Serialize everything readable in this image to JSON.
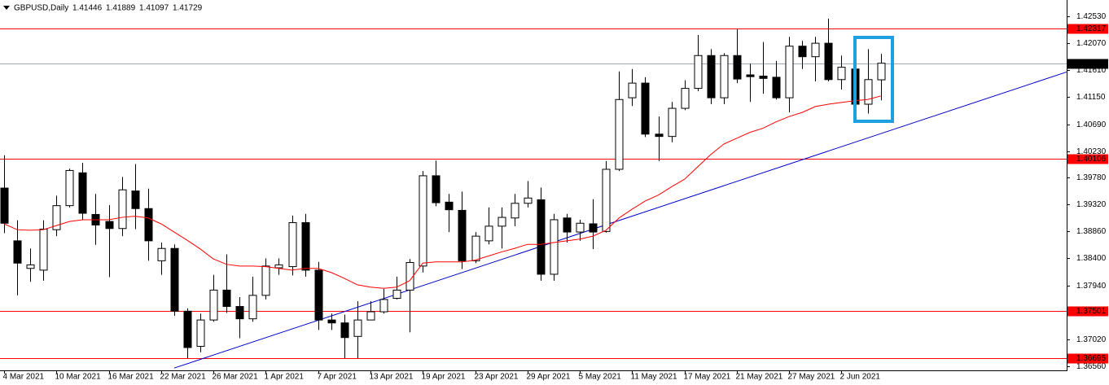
{
  "chart_data": {
    "type": "candlestick",
    "title": "GBPUSD,Daily",
    "categories": [
      "4 Mar 2021",
      null,
      null,
      null,
      "10 Mar 2021",
      null,
      null,
      null,
      "16 Mar 2021",
      null,
      null,
      null,
      "22 Mar 2021",
      null,
      null,
      null,
      "26 Mar 2021",
      null,
      null,
      null,
      "1 Apr 2021",
      null,
      null,
      null,
      "7 Apr 2021",
      null,
      null,
      null,
      "13 Apr 2021",
      null,
      null,
      null,
      "19 Apr 2021",
      null,
      null,
      null,
      "23 Apr 2021",
      null,
      null,
      null,
      "29 Apr 2021",
      null,
      null,
      null,
      "5 May 2021",
      null,
      null,
      null,
      "11 May 2021",
      null,
      null,
      null,
      "17 May 2021",
      null,
      null,
      null,
      "21 May 2021",
      null,
      null,
      null,
      "27 May 2021",
      null,
      null,
      null,
      "2 Jun 2021",
      null,
      null,
      null
    ],
    "open": [
      1.396,
      1.387,
      1.3823,
      1.382,
      1.3889,
      1.393,
      1.3986,
      1.3915,
      1.3903,
      1.3891,
      1.3955,
      1.3925,
      1.3836,
      1.3857,
      1.375,
      1.369,
      1.3735,
      1.3786,
      1.3758,
      1.3737,
      1.3777,
      1.3824,
      1.3826,
      1.3901,
      1.382,
      1.3735,
      1.373,
      1.3707,
      1.3735,
      1.3749,
      1.3772,
      1.3786,
      1.3827,
      1.3981,
      1.3936,
      1.3922,
      1.3836,
      1.387,
      1.3895,
      1.3909,
      1.3934,
      1.394,
      1.3813,
      1.3909,
      1.3885,
      1.3899,
      1.3886,
      1.3992,
      1.4114,
      1.4139,
      1.4052,
      1.4048,
      1.4096,
      1.413,
      1.4186,
      1.4114,
      1.4186,
      1.4153,
      1.4151,
      1.4149,
      1.4114,
      1.4202,
      1.4184,
      1.4207,
      1.4145,
      1.4163,
      1.4103,
      1.41446
    ],
    "high": [
      1.4016,
      1.3905,
      1.3857,
      1.3905,
      1.3947,
      1.3993,
      1.4003,
      1.395,
      1.3931,
      1.3979,
      1.4001,
      1.3959,
      1.3867,
      1.3864,
      1.3755,
      1.3746,
      1.3812,
      1.3847,
      1.3774,
      1.3809,
      1.384,
      1.384,
      1.3913,
      1.3916,
      1.3834,
      1.3746,
      1.3744,
      1.3767,
      1.3767,
      1.3788,
      1.3809,
      1.3839,
      1.3989,
      1.4007,
      1.395,
      1.3954,
      1.3885,
      1.3927,
      1.3927,
      1.395,
      1.3972,
      1.3961,
      1.3916,
      1.3916,
      1.3906,
      1.3941,
      1.4006,
      1.4159,
      1.4163,
      1.4149,
      1.4082,
      1.4107,
      1.4144,
      1.4221,
      1.4197,
      1.419,
      1.4232,
      1.4172,
      1.4209,
      1.4177,
      1.4218,
      1.4211,
      1.4218,
      1.4249,
      1.4186,
      1.4195,
      1.4197,
      1.41889
    ],
    "low": [
      1.3883,
      1.3777,
      1.38,
      1.3802,
      1.3878,
      1.3927,
      1.3906,
      1.3863,
      1.3808,
      1.3878,
      1.389,
      1.3836,
      1.3812,
      1.3742,
      1.367,
      1.368,
      1.3732,
      1.3747,
      1.3704,
      1.3732,
      1.377,
      1.3812,
      1.3811,
      1.3809,
      1.3718,
      1.3718,
      1.367,
      1.367,
      1.3736,
      1.3746,
      1.377,
      1.3714,
      1.3816,
      1.3929,
      1.3885,
      1.3822,
      1.3832,
      1.3864,
      1.3857,
      1.3895,
      1.3927,
      1.3802,
      1.3802,
      1.3867,
      1.387,
      1.3856,
      1.3884,
      1.3989,
      1.41,
      1.4047,
      1.4006,
      1.4038,
      1.4093,
      1.4125,
      1.4103,
      1.4103,
      1.4139,
      1.4107,
      1.4121,
      1.4111,
      1.4089,
      1.4163,
      1.4142,
      1.4142,
      1.4128,
      1.4087,
      1.4087,
      1.41097
    ],
    "close": [
      1.39,
      1.3832,
      1.3829,
      1.389,
      1.393,
      1.399,
      1.3917,
      1.3897,
      1.3891,
      1.3957,
      1.3925,
      1.387,
      1.3857,
      1.375,
      1.3688,
      1.3735,
      1.3786,
      1.3758,
      1.3737,
      1.3777,
      1.3827,
      1.3829,
      1.3901,
      1.382,
      1.3735,
      1.373,
      1.3705,
      1.3735,
      1.3749,
      1.377,
      1.3786,
      1.3833,
      1.3981,
      1.3935,
      1.3923,
      1.3836,
      1.3878,
      1.3895,
      1.391,
      1.3934,
      1.3943,
      1.3813,
      1.3906,
      1.3885,
      1.39,
      1.3885,
      1.3992,
      1.4111,
      1.4139,
      1.4052,
      1.4048,
      1.4096,
      1.413,
      1.4186,
      1.4114,
      1.4186,
      1.4146,
      1.415,
      1.4147,
      1.4114,
      1.4202,
      1.4184,
      1.4207,
      1.4145,
      1.4166,
      1.4103,
      1.4145,
      1.41729
    ],
    "up_color": "#ffffff",
    "down_color": "#000000",
    "ylim": [
      1.36491,
      1.42738
    ],
    "yticks": [
      {
        "value": 1.4253,
        "label": "1.42530"
      },
      {
        "value": 1.4207,
        "label": "1.42070"
      },
      {
        "value": 1.4161,
        "label": "1.41610"
      },
      {
        "value": 1.4115,
        "label": "1.41150"
      },
      {
        "value": 1.4069,
        "label": "1.40690"
      },
      {
        "value": 1.4023,
        "label": "1.40230"
      },
      {
        "value": 1.3978,
        "label": "1.39780"
      },
      {
        "value": 1.3932,
        "label": "1.39320"
      },
      {
        "value": 1.3886,
        "label": "1.38860"
      },
      {
        "value": 1.384,
        "label": "1.38400"
      },
      {
        "value": 1.3794,
        "label": "1.37940"
      },
      {
        "value": 1.3702,
        "label": "1.37020"
      },
      {
        "value": 1.3656,
        "label": "1.36560"
      }
    ],
    "ma": {
      "color": "#ff0000",
      "values": [
        1.3899,
        1.3889,
        1.3888,
        1.3889,
        1.3896,
        1.3903,
        1.3906,
        1.3906,
        1.3906,
        1.391,
        1.3912,
        1.3909,
        1.3899,
        1.3885,
        1.3871,
        1.3856,
        1.3839,
        1.383,
        1.3827,
        1.3827,
        1.3826,
        1.3823,
        1.382,
        1.3823,
        1.3823,
        1.3816,
        1.3806,
        1.3795,
        1.3791,
        1.3789,
        1.3791,
        1.3802,
        1.3832,
        1.3834,
        1.3834,
        1.3834,
        1.3837,
        1.3844,
        1.3851,
        1.3857,
        1.3864,
        1.3864,
        1.3867,
        1.387,
        1.3873,
        1.3878,
        1.3888,
        1.3909,
        1.3924,
        1.3938,
        1.3948,
        1.3962,
        1.3975,
        1.3996,
        1.4017,
        1.4035,
        1.4045,
        1.4055,
        1.4062,
        1.4073,
        1.4082,
        1.4089,
        1.4099,
        1.4103,
        1.4106,
        1.4109,
        1.4111,
        1.4117
      ]
    },
    "levels": [
      {
        "value": 1.42317,
        "color": "#ff0000"
      },
      {
        "value": 1.40106,
        "color": "#ff0000"
      },
      {
        "value": 1.37501,
        "color": "#ff0000"
      },
      {
        "value": 1.36695,
        "color": "#ff0000"
      }
    ],
    "price_line_color": "#a0aab4",
    "trendline": {
      "x": [
        13,
        67
      ],
      "y": [
        1.3653,
        1.40528
      ],
      "color": "#0000c8"
    }
  }
}
